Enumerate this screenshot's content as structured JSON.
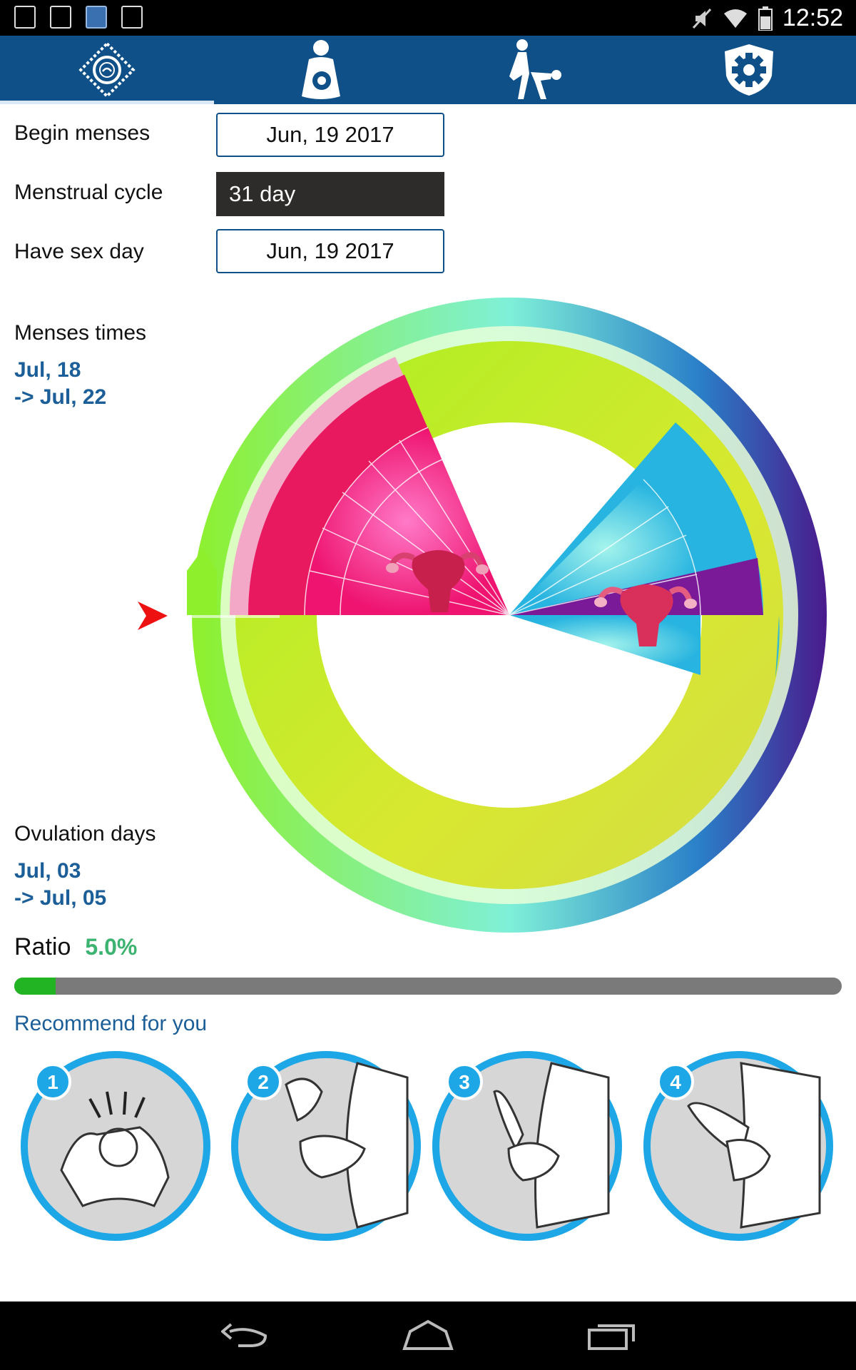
{
  "status_bar": {
    "time": "12:52"
  },
  "tabs": [
    {
      "name": "calendar-tab",
      "icon": "condom-diamond-icon"
    },
    {
      "name": "pregnancy-tab",
      "icon": "pregnant-woman-icon"
    },
    {
      "name": "positions-tab",
      "icon": "couple-icon"
    },
    {
      "name": "settings-tab",
      "icon": "gear-shield-icon"
    }
  ],
  "form": {
    "begin_menses_label": "Begin menses",
    "begin_menses_value": "Jun, 19 2017",
    "cycle_label": "Menstrual cycle",
    "cycle_value": "31 day",
    "sex_day_label": "Have sex day",
    "sex_day_value": "Jun, 19 2017"
  },
  "menses": {
    "label": "Menses times",
    "from": "Jul, 18",
    "to": "-> Jul, 22"
  },
  "ovulation": {
    "label": "Ovulation days",
    "from": "Jul, 03",
    "to": "-> Jul, 05"
  },
  "ratio": {
    "label": "Ratio",
    "value": "5.0%",
    "fraction": 0.05
  },
  "recommend": {
    "title": "Recommend for you",
    "steps": [
      {
        "number": "1"
      },
      {
        "number": "2"
      },
      {
        "number": "3"
      },
      {
        "number": "4"
      }
    ]
  },
  "colors": {
    "header": "#0f5088",
    "accent_blue": "#1b5e98",
    "ratio_green": "#3cb371",
    "progress_fill": "#22b422",
    "step_ring": "#1ea7e6"
  }
}
